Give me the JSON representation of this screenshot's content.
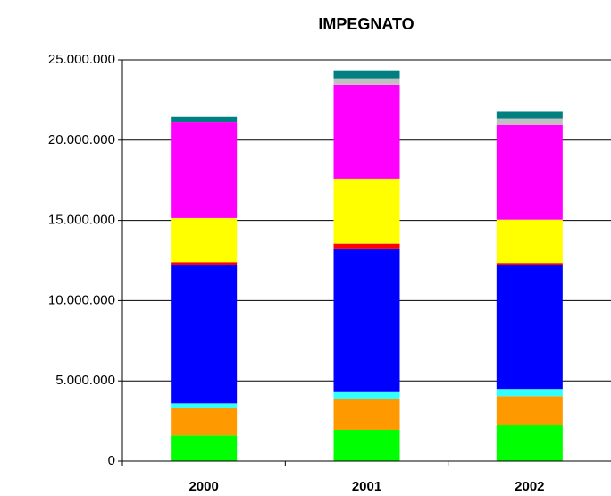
{
  "chart_data": {
    "type": "bar",
    "stacked": true,
    "title": "IMPEGNATO",
    "categories": [
      "2000",
      "2001",
      "2002"
    ],
    "series": [
      {
        "color": "#00ff00",
        "values": [
          1600000,
          1950000,
          2250000
        ]
      },
      {
        "color": "#ff9900",
        "values": [
          1700000,
          1900000,
          1800000
        ]
      },
      {
        "color": "#33ffff",
        "values": [
          300000,
          450000,
          450000
        ]
      },
      {
        "color": "#0000ff",
        "values": [
          8650000,
          8900000,
          7700000
        ]
      },
      {
        "color": "#ff0000",
        "values": [
          150000,
          350000,
          150000
        ]
      },
      {
        "color": "#ffff00",
        "values": [
          2750000,
          4050000,
          2700000
        ]
      },
      {
        "color": "#ff00ff",
        "values": [
          5950000,
          5850000,
          5900000
        ]
      },
      {
        "color": "#c0c0c0",
        "values": [
          50000,
          400000,
          400000
        ]
      },
      {
        "color": "#008080",
        "values": [
          300000,
          500000,
          450000
        ]
      }
    ],
    "ylim": [
      0,
      25000000
    ],
    "yticks": [
      0,
      {
        "value": 5000000,
        "label": "5.000.000"
      },
      {
        "value": 10000000,
        "label": "10.000.000"
      },
      {
        "value": 15000000,
        "label": "15.000.000"
      },
      {
        "value": 20000000,
        "label": "20.000.000"
      },
      {
        "value": 25000000,
        "label": "25.000.000"
      }
    ],
    "grid": true
  }
}
